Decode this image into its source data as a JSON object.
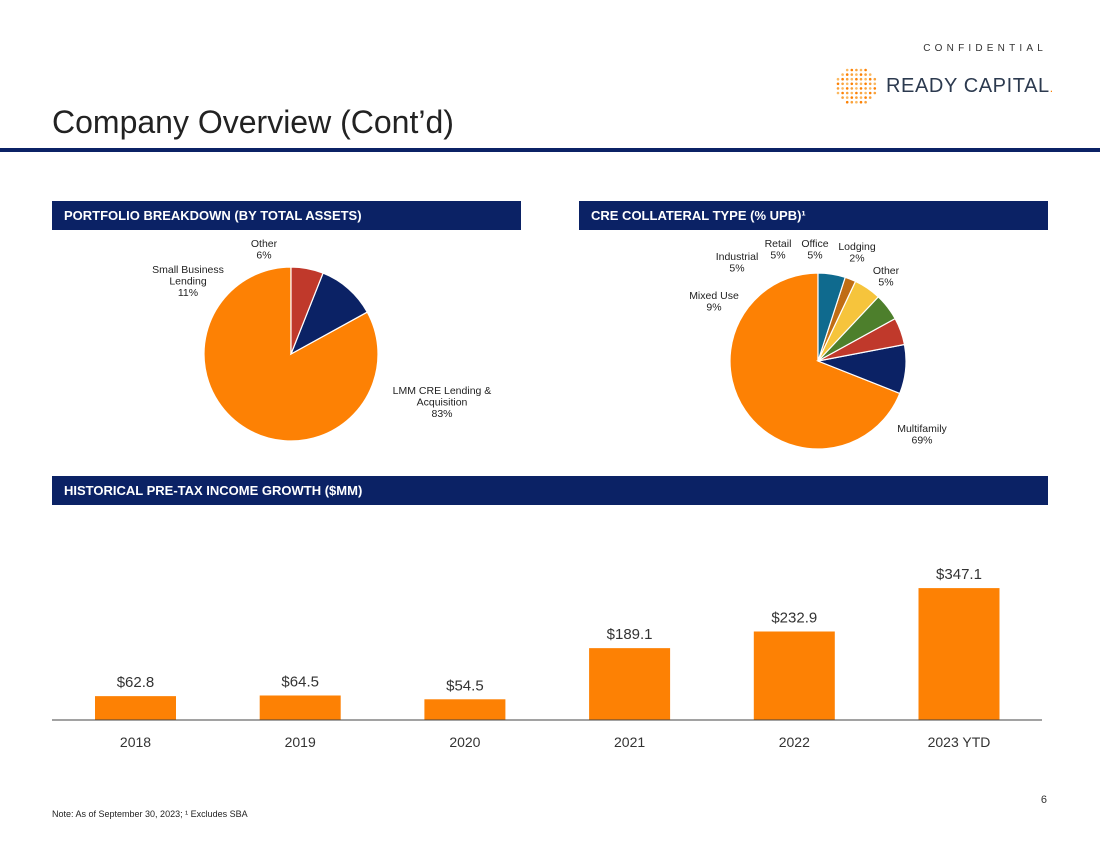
{
  "header": {
    "confidential": "CONFIDENTIAL",
    "brand": "READY CAPITAL",
    "brand_suffix": ".",
    "title": "Company Overview (Cont’d)"
  },
  "colors": {
    "navy": "#0b2265",
    "orange": "#fd8104",
    "red": "#c0392b",
    "green": "#4d7f2c",
    "yellow": "#f6c43c",
    "brown": "#c06d14",
    "teal": "#0f6a8e"
  },
  "sections": {
    "portfolio": "PORTFOLIO BREAKDOWN (BY TOTAL ASSETS)",
    "collateral": "CRE COLLATERAL TYPE (% UPB)¹",
    "income": "HISTORICAL PRE-TAX INCOME GROWTH ($MM)"
  },
  "chart_data": [
    {
      "type": "pie",
      "title": "PORTFOLIO BREAKDOWN (BY TOTAL ASSETS)",
      "slices": [
        {
          "label": [
            "LMM CRE Lending &",
            "Acquisition"
          ],
          "pct_text": "83%",
          "value": 83,
          "color": "#fd8104"
        },
        {
          "label": [
            "Small Business",
            "Lending"
          ],
          "pct_text": "11%",
          "value": 11,
          "color": "#0b2265"
        },
        {
          "label": [
            "Other"
          ],
          "pct_text": "6%",
          "value": 6,
          "color": "#c0392b"
        }
      ]
    },
    {
      "type": "pie",
      "title": "CRE COLLATERAL TYPE (% UPB)¹",
      "slices": [
        {
          "label": [
            "Multifamily"
          ],
          "pct_text": "69%",
          "value": 69,
          "color": "#fd8104"
        },
        {
          "label": [
            "Mixed Use"
          ],
          "pct_text": "9%",
          "value": 9,
          "color": "#0b2265"
        },
        {
          "label": [
            "Industrial"
          ],
          "pct_text": "5%",
          "value": 5,
          "color": "#c0392b"
        },
        {
          "label": [
            "Retail"
          ],
          "pct_text": "5%",
          "value": 5,
          "color": "#4d7f2c"
        },
        {
          "label": [
            "Office"
          ],
          "pct_text": "5%",
          "value": 5,
          "color": "#f6c43c"
        },
        {
          "label": [
            "Lodging"
          ],
          "pct_text": "2%",
          "value": 2,
          "color": "#c06d14"
        },
        {
          "label": [
            "Other"
          ],
          "pct_text": "5%",
          "value": 5,
          "color": "#0f6a8e"
        }
      ]
    },
    {
      "type": "bar",
      "title": "HISTORICAL PRE-TAX INCOME GROWTH ($MM)",
      "categories": [
        "2018",
        "2019",
        "2020",
        "2021",
        "2022",
        "2023 YTD"
      ],
      "values": [
        62.8,
        64.5,
        54.5,
        189.1,
        232.9,
        347.1
      ],
      "value_labels": [
        "$62.8",
        "$64.5",
        "$54.5",
        "$189.1",
        "$232.9",
        "$347.1"
      ],
      "ylim": [
        0,
        400
      ],
      "color": "#fd8104"
    }
  ],
  "footer": {
    "page_number": "6",
    "note": "Note: As of September 30, 2023; ¹ Excludes SBA"
  }
}
